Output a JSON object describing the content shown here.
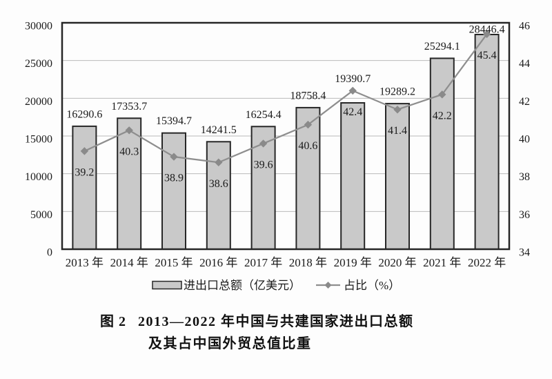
{
  "figure": {
    "caption": {
      "label": "图 2",
      "line1": "2013—2022 年中国与共建国家进出口总额",
      "line2": "及其占中国外贸总值比重"
    }
  },
  "chart_data": {
    "type": "bar",
    "subtype": "bar+line combo, dual axis",
    "title": "图 2 2013—2022 年中国与共建国家进出口总额及其占中国外贸总值比重",
    "categories": [
      "2013 年",
      "2014 年",
      "2015 年",
      "2016 年",
      "2017 年",
      "2018 年",
      "2019 年",
      "2020 年",
      "2021 年",
      "2022 年"
    ],
    "series": [
      {
        "name": "进出口总额（亿美元）",
        "type": "bar",
        "axis": "left",
        "values": [
          16290.6,
          17353.7,
          15394.7,
          14241.5,
          16254.4,
          18758.4,
          19390.7,
          19289.2,
          25294.1,
          28446.4
        ]
      },
      {
        "name": "占比（%）",
        "type": "line",
        "axis": "right",
        "marker": "diamond",
        "values": [
          39.2,
          40.3,
          38.9,
          38.6,
          39.6,
          40.6,
          42.4,
          41.4,
          42.2,
          45.4
        ]
      }
    ],
    "left_axis": {
      "min": 0,
      "max": 30000,
      "step": 5000,
      "ticks": [
        "0",
        "5000",
        "10000",
        "15000",
        "20000",
        "25000",
        "30000"
      ]
    },
    "right_axis": {
      "min": 34,
      "max": 46,
      "step": 2,
      "ticks": [
        "34",
        "36",
        "38",
        "40",
        "42",
        "44",
        "46"
      ]
    },
    "grid": "horizontal",
    "legend_position": "bottom",
    "data_labels": "shown for both series",
    "colors": {
      "bar_fill": "#c9c9c9",
      "bar_stroke": "#262626",
      "line": "#8e8e8e",
      "marker": "#8a8a8a",
      "grid": "#b9b9b9",
      "border": "#262626",
      "text": "#1a1a1a",
      "background": "#fdfdfd"
    }
  }
}
